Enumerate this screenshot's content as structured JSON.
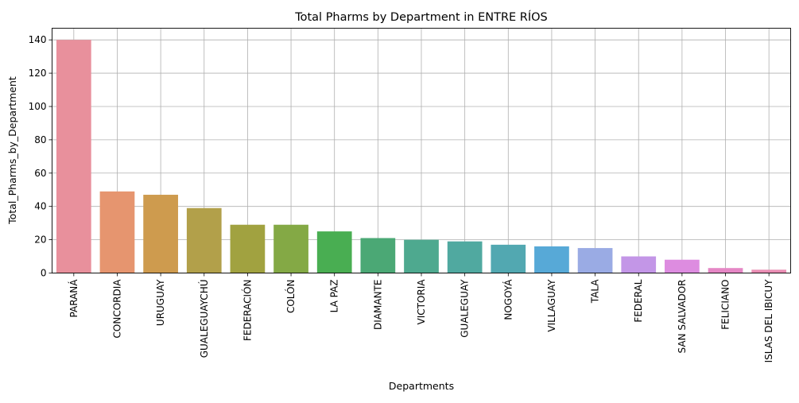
{
  "chart_data": {
    "type": "bar",
    "title": "Total Pharms by Department in ENTRE RÍOS",
    "xlabel": "Departments",
    "ylabel": "Total_Pharms_by_Department",
    "ylim": [
      0,
      147
    ],
    "yticks": [
      0,
      20,
      40,
      60,
      80,
      100,
      120,
      140
    ],
    "grid": true,
    "categories": [
      "PARANÁ",
      "CONCORDIA",
      "URUGUAY",
      "GUALEGUAYCHÚ",
      "FEDERACIÓN",
      "COLÓN",
      "LA PAZ",
      "DIAMANTE",
      "VICTORIA",
      "GUALEGUAY",
      "NOGOYÁ",
      "VILLAGUAY",
      "TALA",
      "FEDERAL",
      "SAN SALVADOR",
      "FELICIANO",
      "ISLAS DEL IBICUY"
    ],
    "values": [
      140,
      49,
      47,
      39,
      29,
      29,
      25,
      21,
      20,
      19,
      17,
      16,
      15,
      10,
      8,
      3,
      2
    ],
    "colors": [
      "#e8909c",
      "#e6956f",
      "#ce9b4e",
      "#b2a04a",
      "#a1a240",
      "#84a945",
      "#49ae52",
      "#4ba875",
      "#4ea98f",
      "#50a9a0",
      "#52a8b1",
      "#57a9d7",
      "#9aabe4",
      "#c396e7",
      "#dd8ce0",
      "#e587c5",
      "#e98db3"
    ]
  }
}
